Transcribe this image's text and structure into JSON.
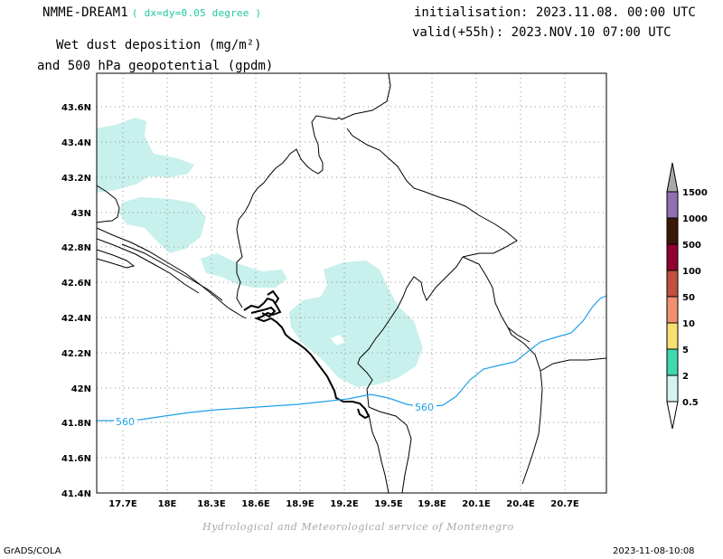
{
  "header": {
    "model": "NMME-DREAM1",
    "resolution": "( dx=dy=0.05 degree )",
    "line1": "Wet dust deposition (mg/m²)",
    "line2": "and 500 hPa geopotential (gpdm)",
    "init": "initialisation: 2023.11.08. 00:00 UTC",
    "valid": "valid(+55h): 2023.NOV.10 07:00 UTC"
  },
  "map": {
    "lat_labels": [
      "43.6N",
      "43.4N",
      "43.2N",
      "43N",
      "42.8N",
      "42.6N",
      "42.4N",
      "42.2N",
      "42N",
      "41.8N",
      "41.6N",
      "41.4N"
    ],
    "lon_labels": [
      "17.7E",
      "18E",
      "18.3E",
      "18.6E",
      "18.9E",
      "19.2E",
      "19.5E",
      "19.8E",
      "20.1E",
      "20.4E",
      "20.7E"
    ],
    "geopotential_contour": {
      "value": "560",
      "color": "#1fa0e8"
    },
    "deposition_color": "#c8f0ec",
    "grid": true
  },
  "colorbar": {
    "levels": [
      "0.5",
      "2",
      "5",
      "10",
      "50",
      "100",
      "500",
      "1000",
      "1500"
    ],
    "colors": [
      "#d4f4f0",
      "#40d8b0",
      "#f8e070",
      "#f09070",
      "#c05040",
      "#900030",
      "#381808",
      "#9070b0",
      "#a8a8a8"
    ]
  },
  "credit": "Hydrological and Meteorological service of Montenegro",
  "footer": {
    "left": "GrADS/COLA",
    "right": "2023-11-08-10:08"
  }
}
